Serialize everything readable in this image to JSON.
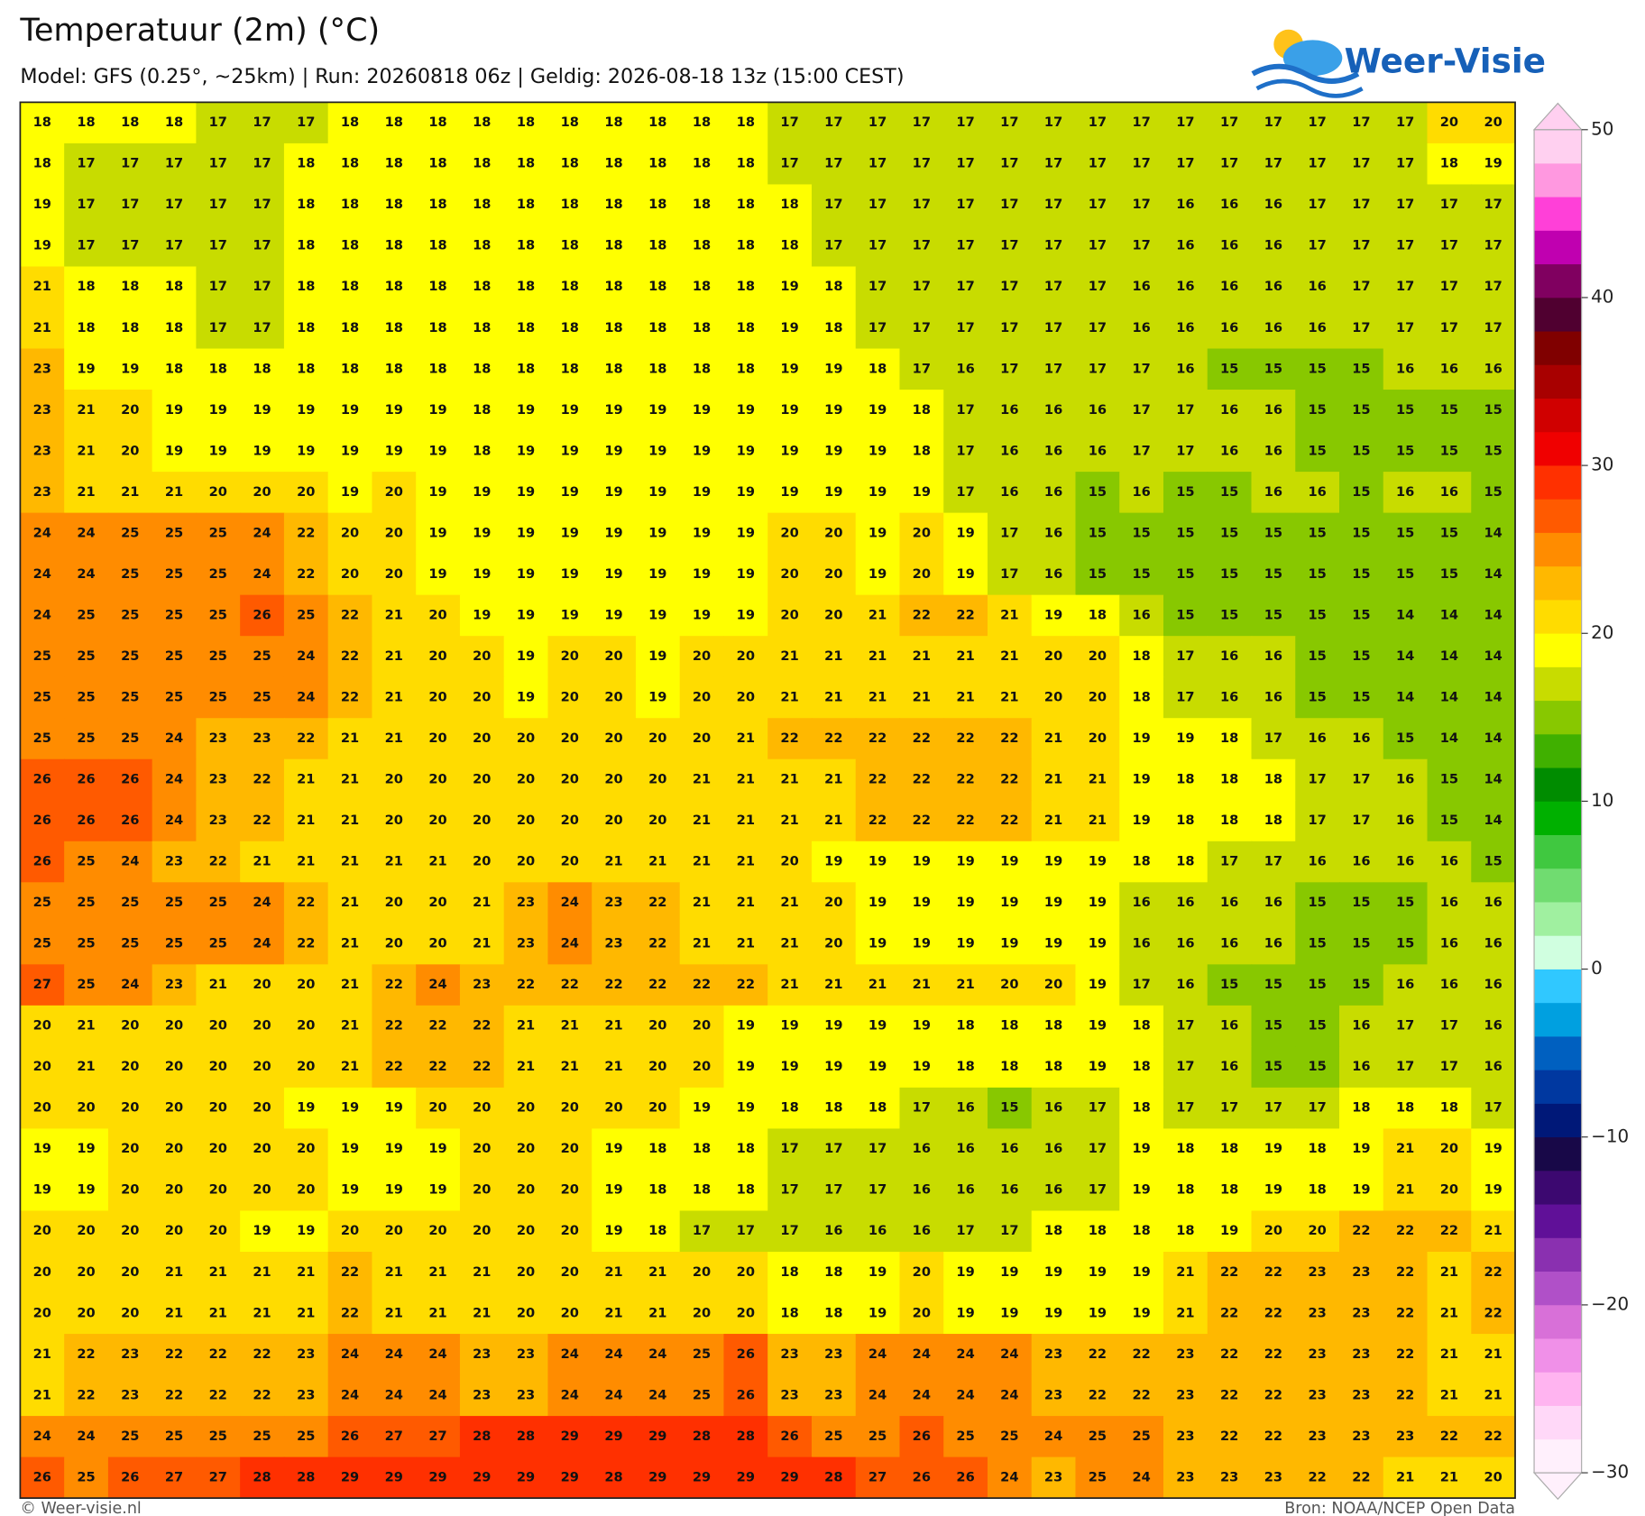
{
  "header": {
    "title": "Temperatuur (2m) (°C)",
    "subtitle": "Model: GFS (0.25°, ~25km)  |  Run: 20260818 06z  |  Geldig: 2026-08-18 13z (15:00 CEST)",
    "logo": "Weer-Visie"
  },
  "map": {
    "grid": [
      [
        18,
        18,
        18,
        18,
        17,
        17,
        17,
        18,
        18,
        18,
        18,
        18,
        18,
        18,
        18,
        18,
        18,
        17,
        17,
        17,
        17,
        17,
        17,
        17,
        17,
        17,
        17,
        17,
        17,
        17,
        17,
        17,
        20,
        20
      ],
      [
        18,
        17,
        17,
        17,
        17,
        17,
        18,
        18,
        18,
        18,
        18,
        18,
        18,
        18,
        18,
        18,
        18,
        17,
        17,
        17,
        17,
        17,
        17,
        17,
        17,
        17,
        17,
        17,
        17,
        17,
        17,
        17,
        18,
        19
      ],
      [
        19,
        17,
        17,
        17,
        17,
        17,
        18,
        18,
        18,
        18,
        18,
        18,
        18,
        18,
        18,
        18,
        18,
        18,
        17,
        17,
        17,
        17,
        17,
        17,
        17,
        17,
        16,
        16,
        16,
        17,
        17,
        17,
        17,
        17
      ],
      [
        19,
        17,
        17,
        17,
        17,
        17,
        18,
        18,
        18,
        18,
        18,
        18,
        18,
        18,
        18,
        18,
        18,
        18,
        17,
        17,
        17,
        17,
        17,
        17,
        17,
        17,
        16,
        16,
        16,
        17,
        17,
        17,
        17,
        17
      ],
      [
        21,
        18,
        18,
        18,
        17,
        17,
        18,
        18,
        18,
        18,
        18,
        18,
        18,
        18,
        18,
        18,
        18,
        19,
        18,
        17,
        17,
        17,
        17,
        17,
        17,
        16,
        16,
        16,
        16,
        16,
        17,
        17,
        17,
        17
      ],
      [
        21,
        18,
        18,
        18,
        17,
        17,
        18,
        18,
        18,
        18,
        18,
        18,
        18,
        18,
        18,
        18,
        18,
        19,
        18,
        17,
        17,
        17,
        17,
        17,
        17,
        16,
        16,
        16,
        16,
        16,
        17,
        17,
        17,
        17
      ],
      [
        23,
        19,
        19,
        18,
        18,
        18,
        18,
        18,
        18,
        18,
        18,
        18,
        18,
        18,
        18,
        18,
        18,
        19,
        19,
        18,
        17,
        16,
        17,
        17,
        17,
        17,
        16,
        15,
        15,
        15,
        15,
        16,
        16,
        16
      ],
      [
        23,
        21,
        20,
        19,
        19,
        19,
        19,
        19,
        19,
        19,
        18,
        19,
        19,
        19,
        19,
        19,
        19,
        19,
        19,
        19,
        18,
        17,
        16,
        16,
        16,
        17,
        17,
        16,
        16,
        15,
        15,
        15,
        15,
        15
      ],
      [
        23,
        21,
        20,
        19,
        19,
        19,
        19,
        19,
        19,
        19,
        18,
        19,
        19,
        19,
        19,
        19,
        19,
        19,
        19,
        19,
        18,
        17,
        16,
        16,
        16,
        17,
        17,
        16,
        16,
        15,
        15,
        15,
        15,
        15
      ],
      [
        23,
        21,
        21,
        21,
        20,
        20,
        20,
        19,
        20,
        19,
        19,
        19,
        19,
        19,
        19,
        19,
        19,
        19,
        19,
        19,
        19,
        17,
        16,
        16,
        15,
        16,
        15,
        15,
        16,
        16,
        15,
        16,
        16,
        15
      ],
      [
        24,
        24,
        25,
        25,
        25,
        24,
        22,
        20,
        20,
        19,
        19,
        19,
        19,
        19,
        19,
        19,
        19,
        20,
        20,
        19,
        20,
        19,
        17,
        16,
        15,
        15,
        15,
        15,
        15,
        15,
        15,
        15,
        15,
        14
      ],
      [
        24,
        24,
        25,
        25,
        25,
        24,
        22,
        20,
        20,
        19,
        19,
        19,
        19,
        19,
        19,
        19,
        19,
        20,
        20,
        19,
        20,
        19,
        17,
        16,
        15,
        15,
        15,
        15,
        15,
        15,
        15,
        15,
        15,
        14
      ],
      [
        24,
        25,
        25,
        25,
        25,
        26,
        25,
        22,
        21,
        20,
        19,
        19,
        19,
        19,
        19,
        19,
        19,
        20,
        20,
        21,
        22,
        22,
        21,
        19,
        18,
        16,
        15,
        15,
        15,
        15,
        15,
        14,
        14,
        14
      ],
      [
        25,
        25,
        25,
        25,
        25,
        25,
        24,
        22,
        21,
        20,
        20,
        19,
        20,
        20,
        19,
        20,
        20,
        21,
        21,
        21,
        21,
        21,
        21,
        20,
        20,
        18,
        17,
        16,
        16,
        15,
        15,
        14,
        14,
        14
      ],
      [
        25,
        25,
        25,
        25,
        25,
        25,
        24,
        22,
        21,
        20,
        20,
        19,
        20,
        20,
        19,
        20,
        20,
        21,
        21,
        21,
        21,
        21,
        21,
        20,
        20,
        18,
        17,
        16,
        16,
        15,
        15,
        14,
        14,
        14
      ],
      [
        25,
        25,
        25,
        24,
        23,
        23,
        22,
        21,
        21,
        20,
        20,
        20,
        20,
        20,
        20,
        20,
        21,
        22,
        22,
        22,
        22,
        22,
        22,
        21,
        20,
        19,
        19,
        18,
        17,
        16,
        16,
        15,
        14,
        14
      ],
      [
        26,
        26,
        26,
        24,
        23,
        22,
        21,
        21,
        20,
        20,
        20,
        20,
        20,
        20,
        20,
        21,
        21,
        21,
        21,
        22,
        22,
        22,
        22,
        21,
        21,
        19,
        18,
        18,
        18,
        17,
        17,
        16,
        15,
        14
      ],
      [
        26,
        26,
        26,
        24,
        23,
        22,
        21,
        21,
        20,
        20,
        20,
        20,
        20,
        20,
        20,
        21,
        21,
        21,
        21,
        22,
        22,
        22,
        22,
        21,
        21,
        19,
        18,
        18,
        18,
        17,
        17,
        16,
        15,
        14
      ],
      [
        26,
        25,
        24,
        23,
        22,
        21,
        21,
        21,
        21,
        21,
        20,
        20,
        20,
        21,
        21,
        21,
        21,
        20,
        19,
        19,
        19,
        19,
        19,
        19,
        19,
        18,
        18,
        17,
        17,
        16,
        16,
        16,
        16,
        15
      ],
      [
        25,
        25,
        25,
        25,
        25,
        24,
        22,
        21,
        20,
        20,
        21,
        23,
        24,
        23,
        22,
        21,
        21,
        21,
        20,
        19,
        19,
        19,
        19,
        19,
        19,
        16,
        16,
        16,
        16,
        15,
        15,
        15,
        16,
        16
      ],
      [
        25,
        25,
        25,
        25,
        25,
        24,
        22,
        21,
        20,
        20,
        21,
        23,
        24,
        23,
        22,
        21,
        21,
        21,
        20,
        19,
        19,
        19,
        19,
        19,
        19,
        16,
        16,
        16,
        16,
        15,
        15,
        15,
        16,
        16
      ],
      [
        27,
        25,
        24,
        23,
        21,
        20,
        20,
        21,
        22,
        24,
        23,
        22,
        22,
        22,
        22,
        22,
        22,
        21,
        21,
        21,
        21,
        21,
        20,
        20,
        19,
        17,
        16,
        15,
        15,
        15,
        15,
        16,
        16,
        16
      ],
      [
        20,
        21,
        20,
        20,
        20,
        20,
        20,
        21,
        22,
        22,
        22,
        21,
        21,
        21,
        20,
        20,
        19,
        19,
        19,
        19,
        19,
        18,
        18,
        18,
        19,
        18,
        17,
        16,
        15,
        15,
        16,
        17,
        17,
        16
      ],
      [
        20,
        21,
        20,
        20,
        20,
        20,
        20,
        21,
        22,
        22,
        22,
        21,
        21,
        21,
        20,
        20,
        19,
        19,
        19,
        19,
        19,
        18,
        18,
        18,
        19,
        18,
        17,
        16,
        15,
        15,
        16,
        17,
        17,
        16
      ],
      [
        20,
        20,
        20,
        20,
        20,
        20,
        19,
        19,
        19,
        20,
        20,
        20,
        20,
        20,
        20,
        19,
        19,
        18,
        18,
        18,
        17,
        16,
        15,
        16,
        17,
        18,
        17,
        17,
        17,
        17,
        18,
        18,
        18,
        17
      ],
      [
        19,
        19,
        20,
        20,
        20,
        20,
        20,
        19,
        19,
        19,
        20,
        20,
        20,
        19,
        18,
        18,
        18,
        17,
        17,
        17,
        16,
        16,
        16,
        16,
        17,
        19,
        18,
        18,
        19,
        18,
        19,
        21,
        20,
        19
      ],
      [
        19,
        19,
        20,
        20,
        20,
        20,
        20,
        19,
        19,
        19,
        20,
        20,
        20,
        19,
        18,
        18,
        18,
        17,
        17,
        17,
        16,
        16,
        16,
        16,
        17,
        19,
        18,
        18,
        19,
        18,
        19,
        21,
        20,
        19
      ],
      [
        20,
        20,
        20,
        20,
        20,
        19,
        19,
        20,
        20,
        20,
        20,
        20,
        20,
        19,
        18,
        17,
        17,
        17,
        16,
        16,
        16,
        17,
        17,
        18,
        18,
        18,
        18,
        19,
        20,
        20,
        22,
        22,
        22,
        21
      ],
      [
        20,
        20,
        20,
        21,
        21,
        21,
        21,
        22,
        21,
        21,
        21,
        20,
        20,
        21,
        21,
        20,
        20,
        18,
        18,
        19,
        20,
        19,
        19,
        19,
        19,
        19,
        21,
        22,
        22,
        23,
        23,
        22,
        21,
        22
      ],
      [
        20,
        20,
        20,
        21,
        21,
        21,
        21,
        22,
        21,
        21,
        21,
        20,
        20,
        21,
        21,
        20,
        20,
        18,
        18,
        19,
        20,
        19,
        19,
        19,
        19,
        19,
        21,
        22,
        22,
        23,
        23,
        22,
        21,
        22
      ],
      [
        21,
        22,
        23,
        22,
        22,
        22,
        23,
        24,
        24,
        24,
        23,
        23,
        24,
        24,
        24,
        25,
        26,
        23,
        23,
        24,
        24,
        24,
        24,
        23,
        22,
        22,
        23,
        22,
        22,
        23,
        23,
        22,
        21,
        21
      ],
      [
        21,
        22,
        23,
        22,
        22,
        22,
        23,
        24,
        24,
        24,
        23,
        23,
        24,
        24,
        24,
        25,
        26,
        23,
        23,
        24,
        24,
        24,
        24,
        23,
        22,
        22,
        23,
        22,
        22,
        23,
        23,
        22,
        21,
        21
      ],
      [
        24,
        24,
        25,
        25,
        25,
        25,
        25,
        26,
        27,
        27,
        28,
        28,
        29,
        29,
        29,
        28,
        28,
        26,
        25,
        25,
        26,
        25,
        25,
        24,
        25,
        25,
        23,
        22,
        22,
        23,
        23,
        23,
        22,
        22
      ],
      [
        26,
        25,
        26,
        27,
        27,
        28,
        28,
        29,
        29,
        29,
        29,
        29,
        29,
        28,
        29,
        29,
        29,
        29,
        28,
        27,
        26,
        26,
        24,
        23,
        25,
        24,
        23,
        23,
        23,
        22,
        22,
        21,
        21,
        20
      ]
    ]
  },
  "colorbar": {
    "lim": [
      -30,
      50
    ],
    "ticks": [
      50,
      40,
      30,
      20,
      10,
      0,
      {
        "value": -10,
        "label": "−10"
      },
      {
        "value": -20,
        "label": "−20"
      },
      {
        "value": -30,
        "label": "−30"
      }
    ],
    "colors": [
      "#fff0fc",
      "#ffd8f8",
      "#ffb4f0",
      "#f090e8",
      "#d870d8",
      "#b050c8",
      "#8a30b0",
      "#601098",
      "#3c0870",
      "#180848",
      "#001878",
      "#0038a0",
      "#0060c0",
      "#00a0e0",
      "#30c8ff",
      "#d0ffe0",
      "#a0f0a0",
      "#70dc70",
      "#40c840",
      "#00b000",
      "#008c00",
      "#40b000",
      "#88c800",
      "#c8dc00",
      "#ffff00",
      "#ffdc00",
      "#ffb800",
      "#ff8c00",
      "#ff5a00",
      "#ff3000",
      "#f00000",
      "#d00000",
      "#a80000",
      "#800000",
      "#500030",
      "#800060",
      "#c000b0",
      "#ff40d8",
      "#ff98e0",
      "#ffd0f0"
    ]
  },
  "footer": {
    "left": "© Weer-visie.nl",
    "right": "Bron: NOAA/NCEP Open Data"
  }
}
